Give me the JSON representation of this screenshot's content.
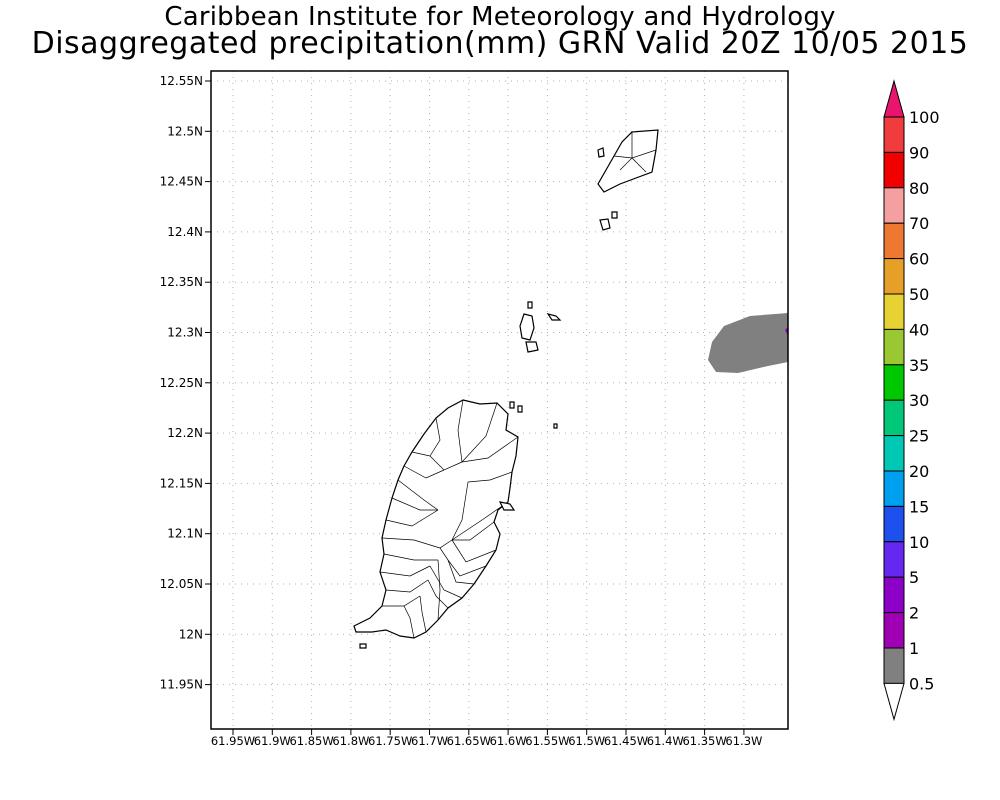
{
  "title": "Caribbean Institute for Meteorology and Hydrology",
  "subtitle": "Disaggregated precipitation(mm) GRN Valid 20Z 10/05 2015",
  "lat_labels": [
    "12.55N",
    "12.5N",
    "12.45N",
    "12.4N",
    "12.35N",
    "12.3N",
    "12.25N",
    "12.2N",
    "12.15N",
    "12.1N",
    "12.05N",
    "12N",
    "11.95N"
  ],
  "lon_labels": [
    "61.95W",
    "61.9W",
    "61.85W",
    "61.8W",
    "61.75W",
    "61.7W",
    "61.65W",
    "61.6W",
    "61.55W",
    "61.5W",
    "61.45W",
    "61.4W",
    "61.35W",
    "61.3W"
  ],
  "precip_area_color": "#808080",
  "colorbar": {
    "labels": [
      "100",
      "90",
      "80",
      "70",
      "60",
      "50",
      "40",
      "35",
      "30",
      "25",
      "20",
      "15",
      "10",
      "5",
      "2",
      "1",
      "0.5"
    ],
    "colors_top_to_bottom": [
      "#e8146e",
      "#f03c3c",
      "#f00000",
      "#f5a0a0",
      "#ee7832",
      "#e6a028",
      "#e6d232",
      "#9ac832",
      "#00c800",
      "#00c878",
      "#00c8b4",
      "#00a0f0",
      "#1e50f0",
      "#6428f0",
      "#8c00c8",
      "#a000b4",
      "#808080",
      "#ffffff"
    ]
  }
}
